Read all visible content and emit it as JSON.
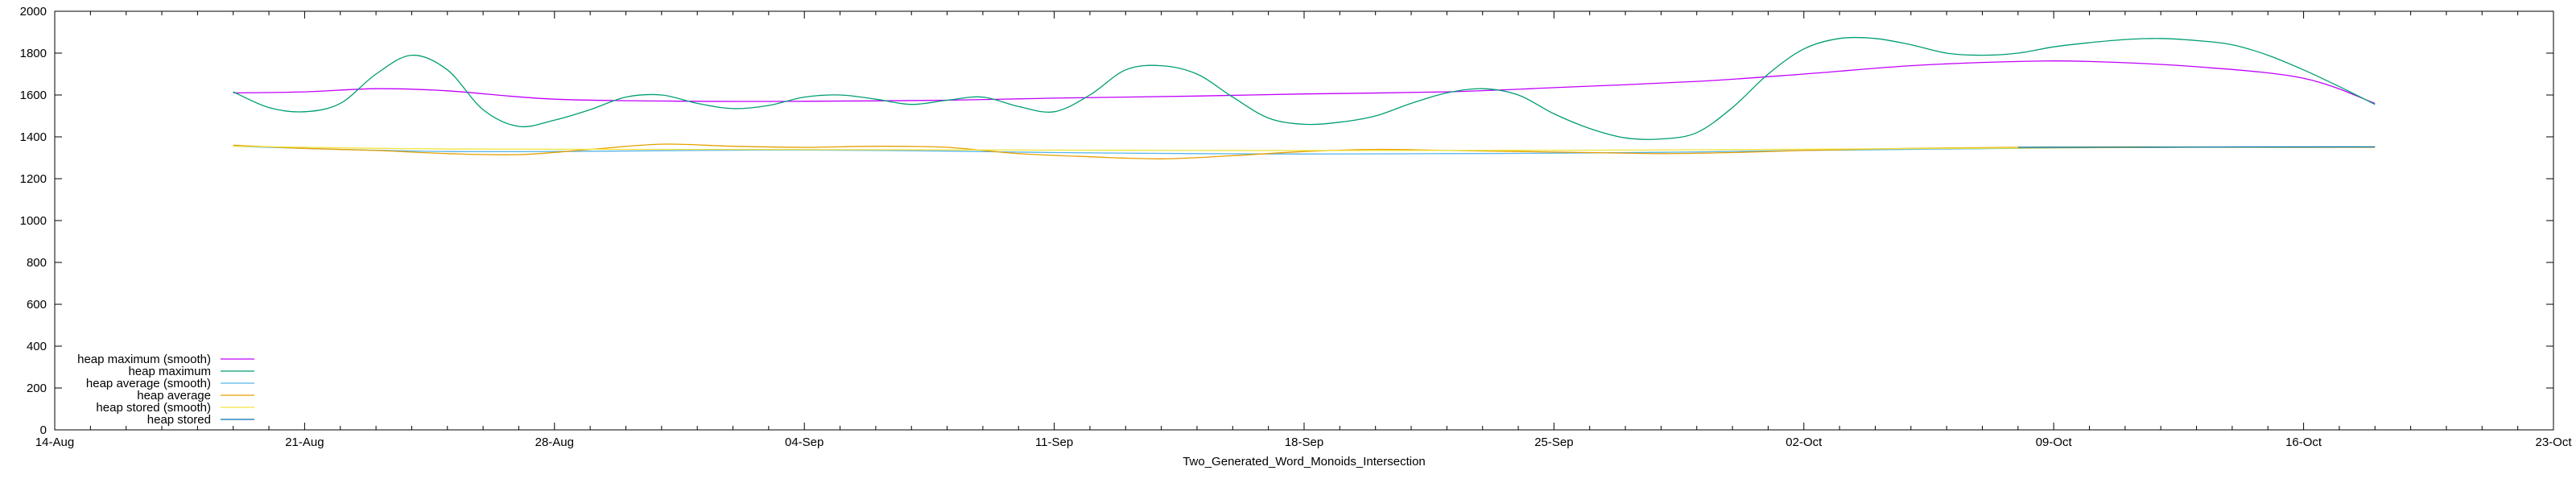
{
  "chart_data": {
    "type": "line",
    "title": "",
    "xlabel": "Two_Generated_Word_Monoids_Intersection",
    "ylabel": "",
    "x_tick_labels": [
      "14-Aug",
      "21-Aug",
      "28-Aug",
      "04-Sep",
      "11-Sep",
      "18-Sep",
      "25-Sep",
      "02-Oct",
      "09-Oct",
      "16-Oct",
      "23-Oct"
    ],
    "xlim": [
      "2023-08-14",
      "2023-10-23"
    ],
    "ylim": [
      0,
      2000
    ],
    "y_ticks": [
      0,
      200,
      400,
      600,
      800,
      1000,
      1200,
      1400,
      1600,
      1800,
      2000
    ],
    "grid": false,
    "legend_position": "bottom-left",
    "series": [
      {
        "name": "heap maximum (smooth)",
        "color": "#c000ff",
        "x": [
          "2023-08-19",
          "2023-08-21",
          "2023-08-23",
          "2023-08-25",
          "2023-08-28",
          "2023-09-01",
          "2023-09-04",
          "2023-09-08",
          "2023-09-11",
          "2023-09-15",
          "2023-09-18",
          "2023-09-22",
          "2023-09-25",
          "2023-09-29",
          "2023-10-02",
          "2023-10-05",
          "2023-10-08",
          "2023-10-10",
          "2023-10-13",
          "2023-10-16",
          "2023-10-18"
        ],
        "y": [
          1610,
          1615,
          1630,
          1620,
          1580,
          1570,
          1570,
          1575,
          1585,
          1595,
          1605,
          1615,
          1635,
          1665,
          1700,
          1740,
          1760,
          1760,
          1735,
          1680,
          1560
        ]
      },
      {
        "name": "heap maximum",
        "color": "#009e73",
        "x": [
          "2023-08-19",
          "2023-08-20",
          "2023-08-21",
          "2023-08-22",
          "2023-08-23",
          "2023-08-24",
          "2023-08-25",
          "2023-08-26",
          "2023-08-27",
          "2023-08-28",
          "2023-08-29",
          "2023-08-30",
          "2023-08-31",
          "2023-09-01",
          "2023-09-02",
          "2023-09-03",
          "2023-09-04",
          "2023-09-05",
          "2023-09-06",
          "2023-09-07",
          "2023-09-08",
          "2023-09-09",
          "2023-09-10",
          "2023-09-11",
          "2023-09-12",
          "2023-09-13",
          "2023-09-14",
          "2023-09-15",
          "2023-09-16",
          "2023-09-17",
          "2023-09-18",
          "2023-09-19",
          "2023-09-20",
          "2023-09-21",
          "2023-09-22",
          "2023-09-23",
          "2023-09-24",
          "2023-09-25",
          "2023-09-26",
          "2023-09-27",
          "2023-09-28",
          "2023-09-29",
          "2023-09-30",
          "2023-10-01",
          "2023-10-02",
          "2023-10-03",
          "2023-10-04",
          "2023-10-05",
          "2023-10-06",
          "2023-10-07",
          "2023-10-08",
          "2023-10-09",
          "2023-10-10",
          "2023-10-11",
          "2023-10-12",
          "2023-10-13",
          "2023-10-14",
          "2023-10-15",
          "2023-10-16",
          "2023-10-17",
          "2023-10-18"
        ],
        "y": [
          1615,
          1540,
          1520,
          1560,
          1700,
          1790,
          1720,
          1530,
          1450,
          1480,
          1530,
          1590,
          1600,
          1560,
          1535,
          1550,
          1590,
          1600,
          1580,
          1555,
          1575,
          1590,
          1545,
          1520,
          1600,
          1720,
          1740,
          1700,
          1590,
          1490,
          1460,
          1470,
          1500,
          1560,
          1610,
          1630,
          1600,
          1510,
          1440,
          1395,
          1390,
          1420,
          1540,
          1700,
          1820,
          1870,
          1870,
          1840,
          1800,
          1790,
          1800,
          1830,
          1850,
          1865,
          1870,
          1860,
          1840,
          1790,
          1720,
          1640,
          1555
        ]
      },
      {
        "name": "heap average (smooth)",
        "color": "#56b4e9",
        "x": [
          "2023-08-19",
          "2023-08-22",
          "2023-08-25",
          "2023-08-28",
          "2023-09-01",
          "2023-09-04",
          "2023-09-08",
          "2023-09-11",
          "2023-09-15",
          "2023-09-18",
          "2023-09-22",
          "2023-09-25",
          "2023-09-29",
          "2023-10-02",
          "2023-10-06",
          "2023-10-10",
          "2023-10-14",
          "2023-10-18"
        ],
        "y": [
          1355,
          1340,
          1330,
          1330,
          1335,
          1337,
          1332,
          1325,
          1320,
          1318,
          1320,
          1322,
          1328,
          1335,
          1342,
          1348,
          1352,
          1352
        ]
      },
      {
        "name": "heap average",
        "color": "#e69f00",
        "x": [
          "2023-08-19",
          "2023-08-21",
          "2023-08-23",
          "2023-08-25",
          "2023-08-27",
          "2023-08-29",
          "2023-08-31",
          "2023-09-02",
          "2023-09-04",
          "2023-09-06",
          "2023-09-08",
          "2023-09-10",
          "2023-09-12",
          "2023-09-14",
          "2023-09-16",
          "2023-09-18",
          "2023-09-20",
          "2023-09-22",
          "2023-09-24",
          "2023-09-26",
          "2023-09-28",
          "2023-09-30",
          "2023-10-02",
          "2023-10-05",
          "2023-10-08",
          "2023-10-11",
          "2023-10-14",
          "2023-10-18"
        ],
        "y": [
          1360,
          1345,
          1335,
          1320,
          1315,
          1340,
          1365,
          1355,
          1350,
          1355,
          1350,
          1320,
          1305,
          1295,
          1310,
          1330,
          1340,
          1335,
          1330,
          1325,
          1320,
          1325,
          1335,
          1345,
          1350,
          1352,
          1350,
          1350
        ]
      },
      {
        "name": "heap stored (smooth)",
        "color": "#f0e442",
        "x": [
          "2023-08-19",
          "2023-08-25",
          "2023-09-01",
          "2023-09-08",
          "2023-09-15",
          "2023-09-22",
          "2023-09-29",
          "2023-10-06",
          "2023-10-13",
          "2023-10-18"
        ],
        "y": [
          1355,
          1342,
          1340,
          1338,
          1335,
          1335,
          1338,
          1345,
          1350,
          1352
        ]
      },
      {
        "name": "heap stored",
        "color": "#0072b2",
        "x": [
          "2023-10-08",
          "2023-10-13",
          "2023-10-18"
        ],
        "y": [
          1350,
          1351,
          1352
        ]
      }
    ]
  }
}
